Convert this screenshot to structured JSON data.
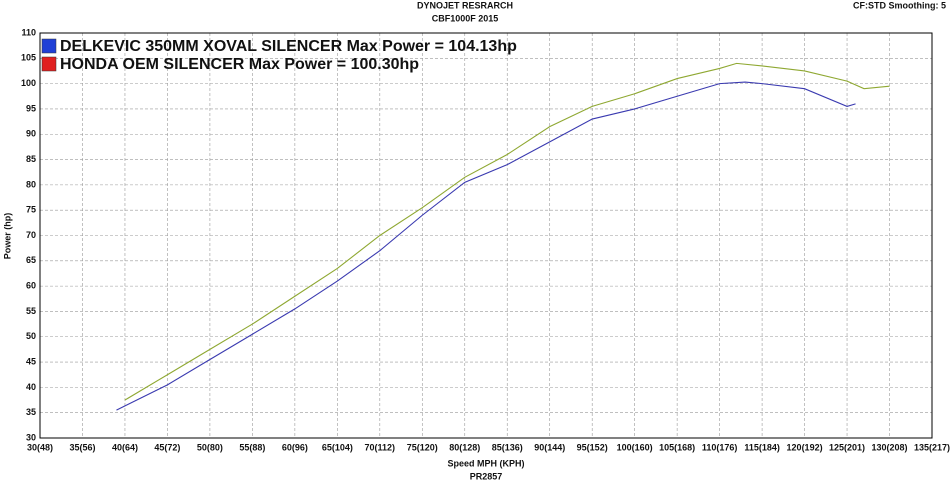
{
  "chart_data": {
    "type": "line",
    "title": "DYNOJET RESRARCH",
    "subtitle": "CBF1000F 2015",
    "corner_note": "CF:STD Smoothing: 5",
    "x_label": "Speed MPH (KPH)",
    "footer": "PR2857",
    "y_label": "Power (hp)",
    "xlim": [
      30,
      135
    ],
    "xticks": [
      {
        "value": 30,
        "label": "30(48)"
      },
      {
        "value": 35,
        "label": "35(56)"
      },
      {
        "value": 40,
        "label": "40(64)"
      },
      {
        "value": 45,
        "label": "45(72)"
      },
      {
        "value": 50,
        "label": "50(80)"
      },
      {
        "value": 55,
        "label": "55(88)"
      },
      {
        "value": 60,
        "label": "60(96)"
      },
      {
        "value": 65,
        "label": "65(104)"
      },
      {
        "value": 70,
        "label": "70(112)"
      },
      {
        "value": 75,
        "label": "75(120)"
      },
      {
        "value": 80,
        "label": "80(128)"
      },
      {
        "value": 85,
        "label": "85(136)"
      },
      {
        "value": 90,
        "label": "90(144)"
      },
      {
        "value": 95,
        "label": "95(152)"
      },
      {
        "value": 100,
        "label": "100(160)"
      },
      {
        "value": 105,
        "label": "105(168)"
      },
      {
        "value": 110,
        "label": "110(176)"
      },
      {
        "value": 115,
        "label": "115(184)"
      },
      {
        "value": 120,
        "label": "120(192)"
      },
      {
        "value": 125,
        "label": "125(201)"
      },
      {
        "value": 130,
        "label": "130(208)"
      },
      {
        "value": 135,
        "label": "135(217)"
      }
    ],
    "ylim": [
      30,
      110
    ],
    "yticks": [
      30,
      35,
      40,
      45,
      50,
      55,
      60,
      65,
      70,
      75,
      80,
      85,
      90,
      95,
      100,
      105,
      110
    ],
    "grid": true,
    "series": [
      {
        "name": "DELKEVIC 350MM XOVAL SILENCER Max Power = 104.13hp",
        "color": "#8fa832",
        "swatch_color": "#1f3fd6",
        "x": [
          40,
          45,
          50,
          55,
          60,
          65,
          70,
          75,
          80,
          85,
          90,
          95,
          100,
          105,
          110,
          112,
          115,
          120,
          125,
          127,
          130
        ],
        "values": [
          37.5,
          42.5,
          47.5,
          52.5,
          58,
          63.5,
          70,
          75.5,
          81.5,
          86,
          91.5,
          95.5,
          98,
          101,
          103,
          104,
          103.5,
          102.5,
          100.5,
          99,
          99.5
        ]
      },
      {
        "name": "HONDA OEM SILENCER Max Power = 100.30hp",
        "color": "#3a3ab0",
        "swatch_color": "#e02020",
        "x": [
          39,
          45,
          50,
          55,
          60,
          65,
          70,
          75,
          80,
          85,
          90,
          95,
          100,
          105,
          110,
          113,
          115,
          120,
          125,
          126
        ],
        "values": [
          35.5,
          40.5,
          45.5,
          50.5,
          55.5,
          61,
          67,
          74,
          80.5,
          84,
          88.5,
          93,
          95,
          97.5,
          100,
          100.3,
          100,
          99,
          95.5,
          96
        ]
      }
    ]
  }
}
